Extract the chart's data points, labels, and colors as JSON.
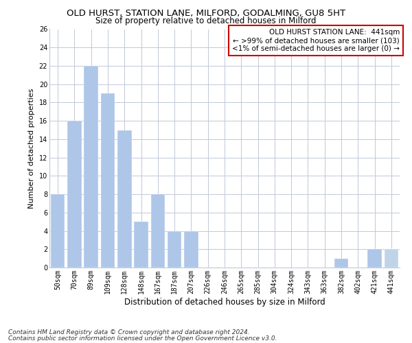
{
  "title": "OLD HURST, STATION LANE, MILFORD, GODALMING, GU8 5HT",
  "subtitle": "Size of property relative to detached houses in Milford",
  "xlabel": "Distribution of detached houses by size in Milford",
  "ylabel": "Number of detached properties",
  "categories": [
    "50sqm",
    "70sqm",
    "89sqm",
    "109sqm",
    "128sqm",
    "148sqm",
    "167sqm",
    "187sqm",
    "207sqm",
    "226sqm",
    "246sqm",
    "265sqm",
    "285sqm",
    "304sqm",
    "324sqm",
    "343sqm",
    "363sqm",
    "382sqm",
    "402sqm",
    "421sqm",
    "441sqm"
  ],
  "values": [
    8,
    16,
    22,
    19,
    15,
    5,
    8,
    4,
    4,
    0,
    0,
    0,
    0,
    0,
    0,
    0,
    0,
    1,
    0,
    2,
    2
  ],
  "bar_color_normal": "#aec6e8",
  "bar_color_highlight": "#c0d4e8",
  "highlight_index": 20,
  "ylim": [
    0,
    26
  ],
  "yticks": [
    0,
    2,
    4,
    6,
    8,
    10,
    12,
    14,
    16,
    18,
    20,
    22,
    24,
    26
  ],
  "annotation_box_text": "OLD HURST STATION LANE:  441sqm\n← >99% of detached houses are smaller (103)\n<1% of semi-detached houses are larger (0) →",
  "annotation_box_color": "#cc0000",
  "footnote1": "Contains HM Land Registry data © Crown copyright and database right 2024.",
  "footnote2": "Contains public sector information licensed under the Open Government Licence v3.0.",
  "background_color": "#ffffff",
  "grid_color": "#c0c8d8",
  "title_fontsize": 9.5,
  "subtitle_fontsize": 8.5,
  "ylabel_fontsize": 8,
  "xlabel_fontsize": 8.5,
  "tick_fontsize": 7,
  "annotation_fontsize": 7.5,
  "footnote_fontsize": 6.5
}
